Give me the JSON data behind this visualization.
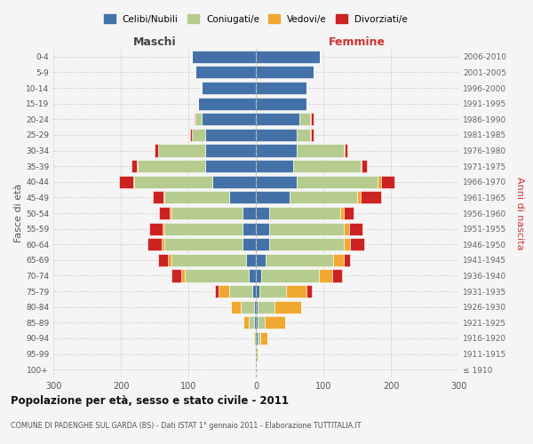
{
  "age_groups": [
    "100+",
    "95-99",
    "90-94",
    "85-89",
    "80-84",
    "75-79",
    "70-74",
    "65-69",
    "60-64",
    "55-59",
    "50-54",
    "45-49",
    "40-44",
    "35-39",
    "30-34",
    "25-29",
    "20-24",
    "15-19",
    "10-14",
    "5-9",
    "0-4"
  ],
  "birth_years": [
    "≤ 1910",
    "1911-1915",
    "1916-1920",
    "1921-1925",
    "1926-1930",
    "1931-1935",
    "1936-1940",
    "1941-1945",
    "1946-1950",
    "1951-1955",
    "1956-1960",
    "1961-1965",
    "1966-1970",
    "1971-1975",
    "1976-1980",
    "1981-1985",
    "1986-1990",
    "1991-1995",
    "1996-2000",
    "2001-2005",
    "2006-2010"
  ],
  "males": {
    "celibi": [
      0,
      0,
      0,
      2,
      2,
      5,
      10,
      15,
      20,
      20,
      20,
      40,
      65,
      75,
      75,
      75,
      80,
      85,
      80,
      90,
      95
    ],
    "coniugati": [
      0,
      0,
      2,
      8,
      20,
      35,
      95,
      110,
      115,
      115,
      105,
      95,
      115,
      100,
      70,
      20,
      10,
      0,
      0,
      0,
      0
    ],
    "vedovi": [
      0,
      0,
      2,
      8,
      15,
      15,
      5,
      5,
      5,
      3,
      3,
      2,
      2,
      1,
      0,
      0,
      0,
      0,
      0,
      0,
      0
    ],
    "divorziati": [
      0,
      0,
      0,
      0,
      0,
      5,
      15,
      15,
      20,
      20,
      15,
      15,
      20,
      8,
      5,
      2,
      1,
      0,
      0,
      0,
      0
    ]
  },
  "females": {
    "nubili": [
      0,
      0,
      2,
      3,
      2,
      5,
      8,
      15,
      20,
      20,
      20,
      50,
      60,
      55,
      60,
      60,
      65,
      75,
      75,
      85,
      95
    ],
    "coniugate": [
      0,
      2,
      5,
      10,
      25,
      40,
      85,
      100,
      110,
      110,
      105,
      100,
      120,
      100,
      70,
      20,
      15,
      0,
      0,
      0,
      0
    ],
    "vedove": [
      0,
      2,
      10,
      30,
      40,
      30,
      20,
      15,
      10,
      8,
      5,
      5,
      5,
      2,
      1,
      1,
      1,
      0,
      0,
      0,
      0
    ],
    "divorziate": [
      0,
      0,
      0,
      0,
      0,
      8,
      15,
      10,
      20,
      20,
      15,
      30,
      20,
      8,
      5,
      5,
      5,
      0,
      0,
      0,
      0
    ]
  },
  "colors": {
    "celibi_nubili": "#4472a8",
    "coniugati": "#b5cc8e",
    "vedovi": "#f0a830",
    "divorziati": "#cc2222"
  },
  "title": "Popolazione per età, sesso e stato civile - 2011",
  "subtitle": "COMUNE DI PADENGHE SUL GARDA (BS) - Dati ISTAT 1° gennaio 2011 - Elaborazione TUTTITALIA.IT",
  "xlabel_left": "Maschi",
  "xlabel_right": "Femmine",
  "ylabel_left": "Fasce di età",
  "ylabel_right": "Anni di nascita",
  "xlim": 300,
  "bg_color": "#f5f5f5",
  "grid_color": "#cccccc"
}
